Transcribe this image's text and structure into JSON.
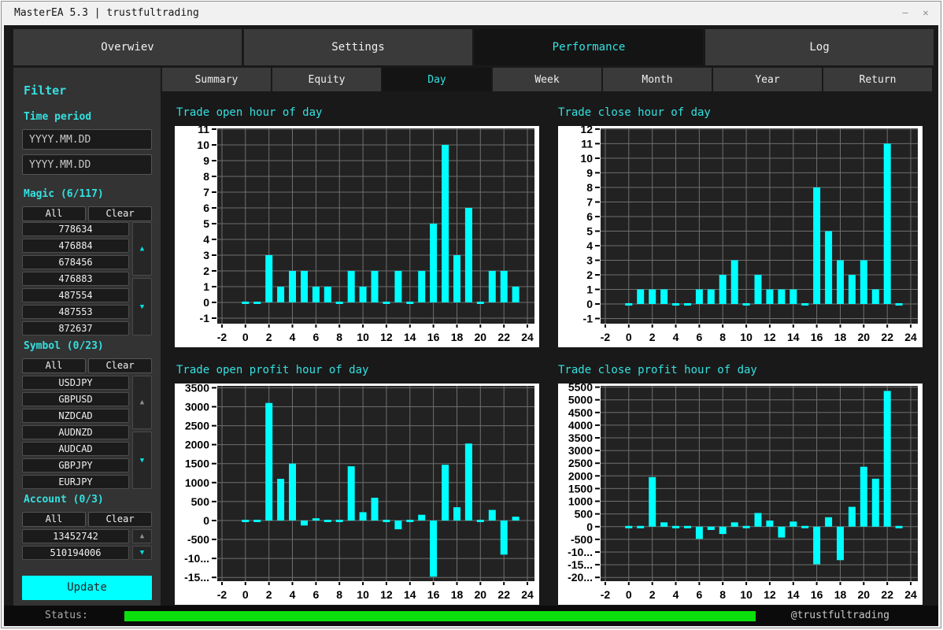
{
  "window": {
    "title": "MasterEA 5.3 | trustfultrading"
  },
  "icons": {
    "scroll_up": "▲",
    "scroll_down": "▼",
    "minimize": "–",
    "close": "✕"
  },
  "main_tabs": [
    {
      "label": "Overwiev",
      "active": false
    },
    {
      "label": "Settings",
      "active": false
    },
    {
      "label": "Performance",
      "active": true
    },
    {
      "label": "Log",
      "active": false
    }
  ],
  "sub_tabs": [
    {
      "label": "Summary",
      "active": false
    },
    {
      "label": "Equity",
      "active": false
    },
    {
      "label": "Day",
      "active": true
    },
    {
      "label": "Week",
      "active": false
    },
    {
      "label": "Month",
      "active": false
    },
    {
      "label": "Year",
      "active": false
    },
    {
      "label": "Return",
      "active": false
    }
  ],
  "sidebar": {
    "title": "Filter",
    "time_period": {
      "label": "Time period",
      "from_placeholder": "YYYY.MM.DD",
      "to_placeholder": "YYYY.MM.DD"
    },
    "magic": {
      "label": "Magic (6/117)",
      "all": "All",
      "clear": "Clear",
      "items": [
        "778634",
        "476884",
        "678456",
        "476883",
        "487554",
        "487553",
        "872637"
      ],
      "up_enabled": true,
      "down_enabled": true
    },
    "symbol": {
      "label": "Symbol (0/23)",
      "all": "All",
      "clear": "Clear",
      "items": [
        "USDJPY",
        "GBPUSD",
        "NZDCAD",
        "AUDNZD",
        "AUDCAD",
        "GBPJPY",
        "EURJPY"
      ],
      "up_enabled": false,
      "down_enabled": true
    },
    "account": {
      "label": "Account (0/3)",
      "all": "All",
      "clear": "Clear",
      "items": [
        "13452742",
        "510194006"
      ],
      "up_enabled": false,
      "down_enabled": true
    },
    "update_label": "Update"
  },
  "status_bar": {
    "label": "Status:",
    "credit": "@trustfultrading"
  },
  "colors": {
    "accent": "#00FFFF",
    "heading": "#35E0E0",
    "bar": "#00FFFF",
    "progress_green": "#0CE00C",
    "plot_bg": "#222222",
    "grid": "#6F6F6F"
  },
  "chart_data": [
    {
      "type": "bar",
      "title": "Trade open hour of day",
      "x_hours": [
        0,
        1,
        2,
        3,
        4,
        5,
        6,
        7,
        8,
        9,
        10,
        11,
        12,
        13,
        14,
        15,
        16,
        17,
        18,
        19,
        20,
        21,
        22,
        23
      ],
      "values": [
        0,
        0,
        3,
        1,
        2,
        2,
        1,
        1,
        0,
        2,
        1,
        2,
        0,
        2,
        0,
        2,
        5,
        10,
        3,
        6,
        0,
        2,
        2,
        1
      ],
      "xticks": [
        -2,
        0,
        2,
        4,
        6,
        8,
        10,
        12,
        14,
        16,
        18,
        20,
        22,
        24
      ],
      "yticks": [
        [
          11,
          "11"
        ],
        [
          10,
          "10"
        ],
        [
          9,
          "9"
        ],
        [
          8,
          "8"
        ],
        [
          7,
          "7"
        ],
        [
          6,
          "6"
        ],
        [
          5,
          "5"
        ],
        [
          4,
          "4"
        ],
        [
          3,
          "3"
        ],
        [
          2,
          "2"
        ],
        [
          1,
          "1"
        ],
        [
          0,
          "0"
        ],
        [
          -1,
          "-1"
        ]
      ],
      "ylim": [
        -1.35,
        11.05
      ],
      "grid": true
    },
    {
      "type": "bar",
      "title": "Trade close hour of day",
      "x_hours": [
        0,
        1,
        2,
        3,
        4,
        5,
        6,
        7,
        8,
        9,
        10,
        11,
        12,
        13,
        14,
        15,
        16,
        17,
        18,
        19,
        20,
        21,
        22,
        23
      ],
      "values": [
        0,
        1,
        1,
        1,
        0,
        0,
        1,
        1,
        2,
        3,
        0,
        2,
        1,
        1,
        1,
        0,
        8,
        5,
        3,
        2,
        3,
        1,
        11,
        0
      ],
      "xticks": [
        -2,
        0,
        2,
        4,
        6,
        8,
        10,
        12,
        14,
        16,
        18,
        20,
        22,
        24
      ],
      "yticks": [
        [
          12,
          "12"
        ],
        [
          11,
          "11"
        ],
        [
          10,
          "10"
        ],
        [
          9,
          "9"
        ],
        [
          8,
          "8"
        ],
        [
          7,
          "7"
        ],
        [
          6,
          "6"
        ],
        [
          5,
          "5"
        ],
        [
          4,
          "4"
        ],
        [
          3,
          "3"
        ],
        [
          2,
          "2"
        ],
        [
          1,
          "1"
        ],
        [
          0,
          "0"
        ],
        [
          -1,
          "-1"
        ]
      ],
      "ylim": [
        -1.35,
        12.05
      ],
      "grid": true
    },
    {
      "type": "bar",
      "title": "Trade open profit hour of day",
      "x_hours": [
        0,
        1,
        2,
        3,
        4,
        5,
        6,
        7,
        8,
        9,
        10,
        11,
        12,
        13,
        14,
        15,
        16,
        17,
        18,
        19,
        20,
        21,
        22,
        23
      ],
      "values": [
        0,
        0,
        3100,
        1100,
        1500,
        -130,
        60,
        0,
        0,
        1430,
        220,
        600,
        0,
        -230,
        0,
        150,
        -1480,
        1470,
        350,
        2030,
        0,
        280,
        -900,
        100
      ],
      "xticks": [
        -2,
        0,
        2,
        4,
        6,
        8,
        10,
        12,
        14,
        16,
        18,
        20,
        22,
        24
      ],
      "yticks": [
        [
          3500,
          "3500"
        ],
        [
          3000,
          "3000"
        ],
        [
          2500,
          "2500"
        ],
        [
          2000,
          "2000"
        ],
        [
          1500,
          "1500"
        ],
        [
          1000,
          "1000"
        ],
        [
          500,
          "500"
        ],
        [
          0,
          "0"
        ],
        [
          -500,
          "-500"
        ],
        [
          -1000,
          "-10..."
        ],
        [
          -1500,
          "-15..."
        ]
      ],
      "ylim": [
        -1600,
        3550
      ],
      "grid": true
    },
    {
      "type": "bar",
      "title": "Trade close profit hour of day",
      "x_hours": [
        0,
        1,
        2,
        3,
        4,
        5,
        6,
        7,
        8,
        9,
        10,
        11,
        12,
        13,
        14,
        15,
        16,
        17,
        18,
        19,
        20,
        21,
        22,
        23
      ],
      "values": [
        0,
        0,
        1950,
        170,
        0,
        0,
        -480,
        -130,
        -290,
        170,
        0,
        540,
        240,
        -430,
        200,
        0,
        -1480,
        370,
        -1320,
        780,
        2360,
        1890,
        5350,
        0
      ],
      "xticks": [
        -2,
        0,
        2,
        4,
        6,
        8,
        10,
        12,
        14,
        16,
        18,
        20,
        22,
        24
      ],
      "yticks": [
        [
          5500,
          "5500"
        ],
        [
          5000,
          "5000"
        ],
        [
          4500,
          "4500"
        ],
        [
          4000,
          "4000"
        ],
        [
          3500,
          "3500"
        ],
        [
          3000,
          "3000"
        ],
        [
          2500,
          "2500"
        ],
        [
          2000,
          "2000"
        ],
        [
          1500,
          "1500"
        ],
        [
          1000,
          "1000"
        ],
        [
          500,
          "500"
        ],
        [
          0,
          "0"
        ],
        [
          -500,
          "-500"
        ],
        [
          -1000,
          "-10..."
        ],
        [
          -1500,
          "-15..."
        ],
        [
          -2000,
          "-20..."
        ]
      ],
      "ylim": [
        -2150,
        5550
      ],
      "grid": true
    }
  ]
}
